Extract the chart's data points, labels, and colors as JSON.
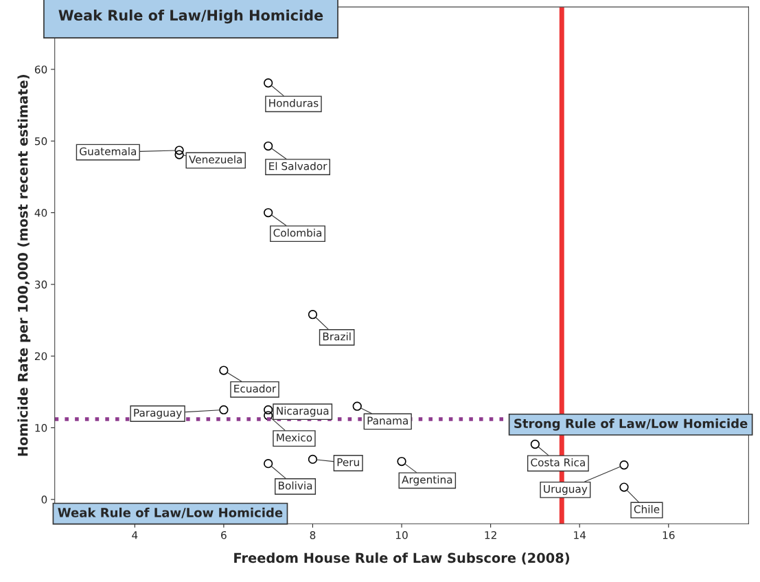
{
  "chart_data": {
    "type": "scatter",
    "xlabel": "Freedom House Rule of Law Subscore (2008)",
    "ylabel": "Homicide Rate per 100,000 (most recent estimate)",
    "x": [
      7,
      7,
      5,
      5,
      7,
      8,
      6,
      6,
      7,
      7,
      9,
      8,
      7,
      10,
      13,
      15,
      15
    ],
    "series": [
      {
        "color": "#000000",
        "values": [
          58.1,
          49.3,
          48.7,
          48.1,
          40.0,
          25.8,
          18.0,
          12.5,
          12.5,
          11.7,
          13.0,
          5.6,
          5.0,
          5.3,
          7.7,
          4.8,
          1.7
        ]
      }
    ],
    "marker": "circle",
    "xlim": [
      2.2,
      17.8
    ],
    "ylim": [
      -3.4,
      68.7
    ],
    "xticks": [
      4,
      6,
      8,
      10,
      12,
      14,
      16
    ],
    "yticks": [
      0,
      10,
      20,
      30,
      40,
      50,
      60
    ],
    "grid": false,
    "legend": false,
    "ref_lines": [
      {
        "axis": "x",
        "value": 13.6,
        "color": "#ee3333",
        "line_style": "solid"
      },
      {
        "axis": "y",
        "value": 11.2,
        "color": "#8e3b8e",
        "line_style": "dotted"
      }
    ],
    "annotations": [
      {
        "text": "Honduras",
        "x": 7,
        "y": 58.1
      },
      {
        "text": "El Salvador",
        "x": 7,
        "y": 49.3
      },
      {
        "text": "Guatemala",
        "x": 5,
        "y": 48.7
      },
      {
        "text": "Venezuela",
        "x": 5,
        "y": 48.1
      },
      {
        "text": "Colombia",
        "x": 7,
        "y": 40.0
      },
      {
        "text": "Brazil",
        "x": 8,
        "y": 25.8
      },
      {
        "text": "Ecuador",
        "x": 6,
        "y": 18.0
      },
      {
        "text": "Paraguay",
        "x": 6,
        "y": 12.5
      },
      {
        "text": "Nicaragua",
        "x": 7,
        "y": 12.5
      },
      {
        "text": "Mexico",
        "x": 7,
        "y": 11.7
      },
      {
        "text": "Panama",
        "x": 9,
        "y": 13.0
      },
      {
        "text": "Peru",
        "x": 8,
        "y": 5.6
      },
      {
        "text": "Bolivia",
        "x": 7,
        "y": 5.0
      },
      {
        "text": "Argentina",
        "x": 10,
        "y": 5.3
      },
      {
        "text": "Costa Rica",
        "x": 13,
        "y": 7.7
      },
      {
        "text": "Uruguay",
        "x": 15,
        "y": 4.8
      },
      {
        "text": "Chile",
        "x": 15,
        "y": 1.7
      },
      "Weak Rule of Law/High Homicide",
      "Strong Rule of Law/Low Homicide",
      "Weak Rule of Law/Low Homicide"
    ]
  }
}
